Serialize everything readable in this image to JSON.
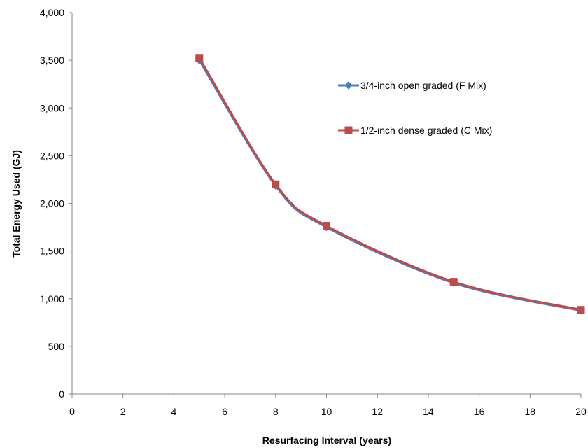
{
  "chart_data": {
    "type": "line",
    "title": "",
    "xlabel": "Resurfacing Interval (years)",
    "ylabel": "Total Energy Used (GJ)",
    "xlim": [
      0,
      20
    ],
    "ylim": [
      0,
      4000
    ],
    "x_ticks": [
      0,
      2,
      4,
      6,
      8,
      10,
      12,
      14,
      16,
      18,
      20
    ],
    "x_tick_labels": [
      "0",
      "2",
      "4",
      "6",
      "8",
      "10",
      "12",
      "14",
      "16",
      "18",
      "20"
    ],
    "y_ticks": [
      0,
      500,
      1000,
      1500,
      2000,
      2500,
      3000,
      3500,
      4000
    ],
    "y_tick_labels": [
      "0",
      "500",
      "1,000",
      "1,500",
      "2,000",
      "2,500",
      "3,000",
      "3,500",
      "4,000"
    ],
    "grid": false,
    "smooth": true,
    "legend_position": "right",
    "series": [
      {
        "name": "3/4-inch open graded (F Mix)",
        "color": "#4a7ebb",
        "marker": "diamond",
        "x": [
          5,
          8,
          10,
          15,
          20
        ],
        "y": [
          3500,
          2185,
          1750,
          1165,
          875
        ]
      },
      {
        "name": "1/2-inch dense graded (C Mix)",
        "color": "#be4b48",
        "marker": "square",
        "x": [
          5,
          8,
          10,
          15,
          20
        ],
        "y": [
          3525,
          2200,
          1765,
          1177,
          883
        ]
      }
    ]
  }
}
